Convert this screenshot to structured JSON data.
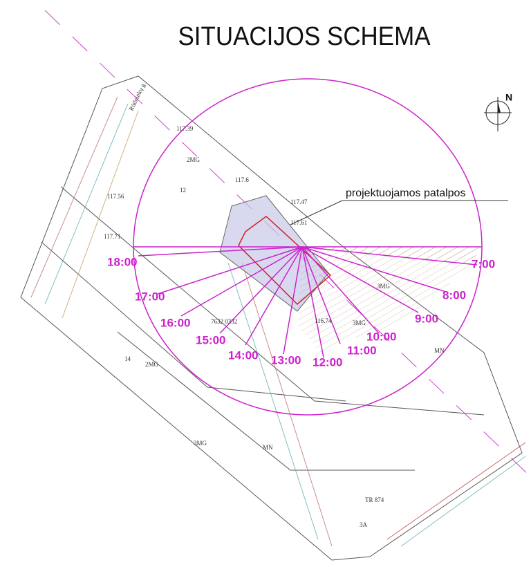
{
  "header": {
    "title": "SITUACIJOS SCHEMA"
  },
  "compass": {
    "label": "N"
  },
  "callout": {
    "label": "projektuojamos patalpos"
  },
  "sun_hours": [
    "7:00",
    "8:00",
    "9:00",
    "10:00",
    "11:00",
    "12:00",
    "13:00",
    "14:00",
    "15:00",
    "16:00",
    "17:00",
    "18:00"
  ],
  "map_labels": [
    "Rūdninkų g.",
    "2MG",
    "3MG",
    "3MG",
    "2MG",
    "14",
    "MN",
    "MN",
    "3MG",
    "TR 874",
    "3A",
    "12",
    "117.39",
    "117.47",
    "117.61",
    "117.6",
    "117.71",
    "117.56",
    "116.74",
    "7632 0332"
  ]
}
